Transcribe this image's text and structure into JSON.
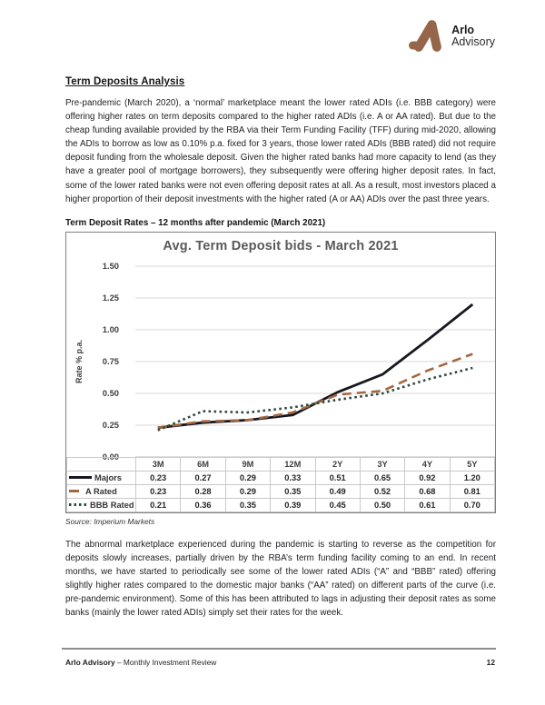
{
  "brand": {
    "name_line1": "Arlo",
    "name_line2": "Advisory",
    "logo_color": "#96664a"
  },
  "heading": "Term Deposits Analysis",
  "paragraph1": "Pre-pandemic (March 2020), a ‘normal’ marketplace meant the lower rated ADIs (i.e. BBB category) were offering higher rates on term deposits compared to the higher rated ADIs (i.e. A or AA rated). But due to the cheap funding available provided by the RBA via their Term Funding Facility (TFF) during mid-2020, allowing the ADIs to borrow as low as 0.10% p.a. fixed for 3 years, those lower rated ADIs (BBB rated) did not require deposit funding from the wholesale deposit. Given the higher rated banks had more capacity to lend (as they have a greater pool of mortgage borrowers), they subsequently were offering higher deposit rates. In fact, some of the lower rated banks were not even offering deposit rates at all. As a result, most investors placed a higher proportion of their deposit investments with the higher rated (A or AA) ADIs over the past three years.",
  "chart_caption": "Term Deposit Rates – 12 months after pandemic (March 2021)",
  "chart_data": {
    "type": "line",
    "title": "Avg. Term Deposit bids - March 2021",
    "xlabel": "",
    "ylabel": "Rate % p.a.",
    "categories": [
      "3M",
      "6M",
      "9M",
      "12M",
      "2Y",
      "3Y",
      "4Y",
      "5Y"
    ],
    "series": [
      {
        "name": "Majors",
        "values": [
          0.23,
          0.27,
          0.29,
          0.33,
          0.51,
          0.65,
          0.92,
          1.2
        ],
        "color": "#17171f",
        "style": "solid"
      },
      {
        "name": "A Rated",
        "values": [
          0.23,
          0.28,
          0.29,
          0.35,
          0.49,
          0.52,
          0.68,
          0.81
        ],
        "color": "#a5673f",
        "style": "dashed"
      },
      {
        "name": "BBB Rated",
        "values": [
          0.21,
          0.36,
          0.35,
          0.39,
          0.45,
          0.5,
          0.61,
          0.7
        ],
        "color": "#2d4a3a",
        "style": "dotted"
      }
    ],
    "ylim": [
      0,
      1.5
    ],
    "ytick_step": 0.25,
    "yticks": [
      "1.50",
      "1.25",
      "1.00",
      "0.75",
      "0.50",
      "0.25",
      "0.00"
    ],
    "grid": true,
    "legend_position": "table-left"
  },
  "source_note": "Source: Imperium Markets",
  "paragraph2": "The abnormal marketplace experienced during the pandemic is starting to reverse as the competition for deposits slowly increases, partially driven by the RBA’s term funding facility coming to an end. In recent months, we have started to periodically see some of the lower rated ADIs (“A” and “BBB” rated) offering slightly higher rates compared to the domestic major banks (“AA” rated) on different parts of the curve (i.e. pre-pandemic environment). Some of this has been attributed to lags in adjusting their deposit rates as some banks (mainly the lower rated ADIs) simply set their rates for the week.",
  "footer": {
    "brand_bold": "Arlo Advisory",
    "rest": " – Monthly Investment Review",
    "page_number": "12"
  }
}
